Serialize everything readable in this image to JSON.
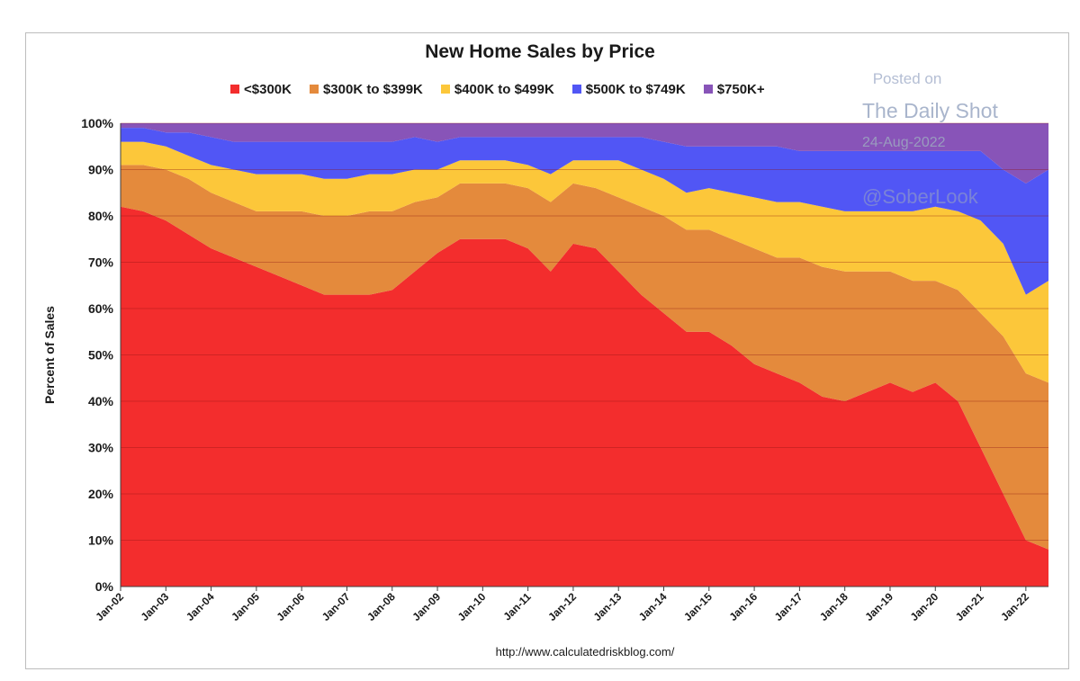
{
  "chart_data": {
    "type": "area",
    "stacked": true,
    "percent": true,
    "title": "New Home Sales by Price",
    "ylabel": "Percent of Sales",
    "xlabel": "",
    "ylim": [
      0,
      100
    ],
    "y_ticks": [
      "0%",
      "10%",
      "20%",
      "30%",
      "40%",
      "50%",
      "60%",
      "70%",
      "80%",
      "90%",
      "100%"
    ],
    "x_tick_labels": [
      "Jan-02",
      "Jan-03",
      "Jan-04",
      "Jan-05",
      "Jan-06",
      "Jan-07",
      "Jan-08",
      "Jan-09",
      "Jan-10",
      "Jan-11",
      "Jan-12",
      "Jan-13",
      "Jan-14",
      "Jan-15",
      "Jan-16",
      "Jan-17",
      "Jan-18",
      "Jan-19",
      "Jan-20",
      "Jan-21",
      "Jan-22"
    ],
    "x_range": [
      "Jan-02",
      "Jul-22"
    ],
    "grid": true,
    "legend_position": "top",
    "x": [
      "Jan-02",
      "Jul-02",
      "Jan-03",
      "Jul-03",
      "Jan-04",
      "Jul-04",
      "Jan-05",
      "Jul-05",
      "Jan-06",
      "Jul-06",
      "Jan-07",
      "Jul-07",
      "Jan-08",
      "Jul-08",
      "Jan-09",
      "Jul-09",
      "Jan-10",
      "Jul-10",
      "Jan-11",
      "Jul-11",
      "Jan-12",
      "Jul-12",
      "Jan-13",
      "Jul-13",
      "Jan-14",
      "Jul-14",
      "Jan-15",
      "Jul-15",
      "Jan-16",
      "Jul-16",
      "Jan-17",
      "Jul-17",
      "Jan-18",
      "Jul-18",
      "Jan-19",
      "Jul-19",
      "Jan-20",
      "Jul-20",
      "Jan-21",
      "Jul-21",
      "Jan-22",
      "Jul-22"
    ],
    "series": [
      {
        "name": "<$300K",
        "color": "#f32d2d",
        "values": [
          82,
          81,
          79,
          76,
          73,
          71,
          69,
          67,
          65,
          63,
          63,
          63,
          64,
          68,
          72,
          75,
          75,
          75,
          73,
          68,
          74,
          73,
          68,
          63,
          59,
          55,
          55,
          52,
          48,
          46,
          44,
          41,
          40,
          42,
          44,
          42,
          44,
          40,
          30,
          20,
          10,
          8
        ]
      },
      {
        "name": "$300K to $399K",
        "color": "#e48a3c",
        "values": [
          9,
          10,
          11,
          12,
          12,
          12,
          12,
          14,
          16,
          17,
          17,
          18,
          17,
          15,
          12,
          12,
          12,
          12,
          13,
          15,
          13,
          13,
          16,
          19,
          21,
          22,
          22,
          23,
          25,
          25,
          27,
          28,
          28,
          26,
          24,
          24,
          22,
          24,
          29,
          34,
          36,
          36
        ]
      },
      {
        "name": "$400K to $499K",
        "color": "#fcc73a",
        "values": [
          5,
          5,
          5,
          5,
          6,
          7,
          8,
          8,
          8,
          8,
          8,
          8,
          8,
          7,
          6,
          5,
          5,
          5,
          5,
          6,
          5,
          6,
          8,
          8,
          8,
          8,
          9,
          10,
          11,
          12,
          12,
          13,
          13,
          13,
          13,
          15,
          16,
          17,
          20,
          20,
          17,
          22
        ]
      },
      {
        "name": "$500K to $749K",
        "color": "#5156f5",
        "values": [
          3,
          3,
          3,
          5,
          6,
          6,
          7,
          7,
          7,
          8,
          8,
          7,
          7,
          7,
          6,
          5,
          5,
          5,
          6,
          8,
          5,
          5,
          5,
          7,
          8,
          10,
          9,
          10,
          11,
          12,
          11,
          12,
          13,
          13,
          13,
          13,
          12,
          13,
          15,
          16,
          24,
          24
        ]
      },
      {
        "name": "$750K+",
        "color": "#8854b8",
        "values": [
          1,
          1,
          2,
          2,
          3,
          4,
          4,
          4,
          4,
          4,
          4,
          4,
          4,
          3,
          4,
          3,
          3,
          3,
          3,
          3,
          3,
          3,
          3,
          3,
          4,
          5,
          5,
          5,
          5,
          5,
          6,
          6,
          6,
          6,
          6,
          6,
          6,
          6,
          6,
          10,
          13,
          10
        ]
      }
    ]
  },
  "watermark": {
    "posted": "Posted on",
    "site": "The Daily Shot",
    "date": "24-Aug-2022",
    "handle": "@SoberLook"
  },
  "source": "http://www.calculatedriskblog.com/"
}
